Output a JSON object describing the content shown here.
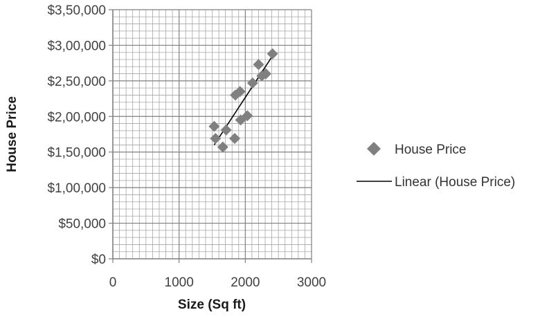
{
  "chart_data": {
    "type": "scatter",
    "xlabel": "Size (Sq ft)",
    "ylabel": "House Price",
    "xlim": [
      0,
      3000
    ],
    "ylim": [
      0,
      350000
    ],
    "x_ticks": [
      0,
      1000,
      2000,
      3000
    ],
    "x_tick_labels": [
      "0",
      "1000",
      "2000",
      "3000"
    ],
    "y_ticks": [
      0,
      50000,
      100000,
      150000,
      200000,
      250000,
      300000,
      350000
    ],
    "y_tick_labels": [
      "$0",
      "$50,000",
      "$1,00,000",
      "$1,50,000",
      "$2,00,000",
      "$2,50,000",
      "$3,00,000",
      "$3,50,000"
    ],
    "grid": true,
    "legend_position": "right",
    "series": [
      {
        "name": "House Price",
        "marker": "diamond",
        "color": "#808080",
        "points": [
          {
            "x": 1530,
            "y": 186000
          },
          {
            "x": 1550,
            "y": 169000
          },
          {
            "x": 1660,
            "y": 157000
          },
          {
            "x": 1710,
            "y": 181000
          },
          {
            "x": 1840,
            "y": 169000
          },
          {
            "x": 1850,
            "y": 230000
          },
          {
            "x": 1920,
            "y": 235000
          },
          {
            "x": 1930,
            "y": 195000
          },
          {
            "x": 2030,
            "y": 201000
          },
          {
            "x": 2110,
            "y": 247000
          },
          {
            "x": 2200,
            "y": 273000
          },
          {
            "x": 2250,
            "y": 257000
          },
          {
            "x": 2310,
            "y": 260000
          },
          {
            "x": 2410,
            "y": 288000
          }
        ]
      },
      {
        "name": "Linear (House Price)",
        "type": "trendline",
        "color": "#000000",
        "x": [
          1530,
          2410
        ],
        "y": [
          160000,
          285000
        ]
      }
    ]
  }
}
